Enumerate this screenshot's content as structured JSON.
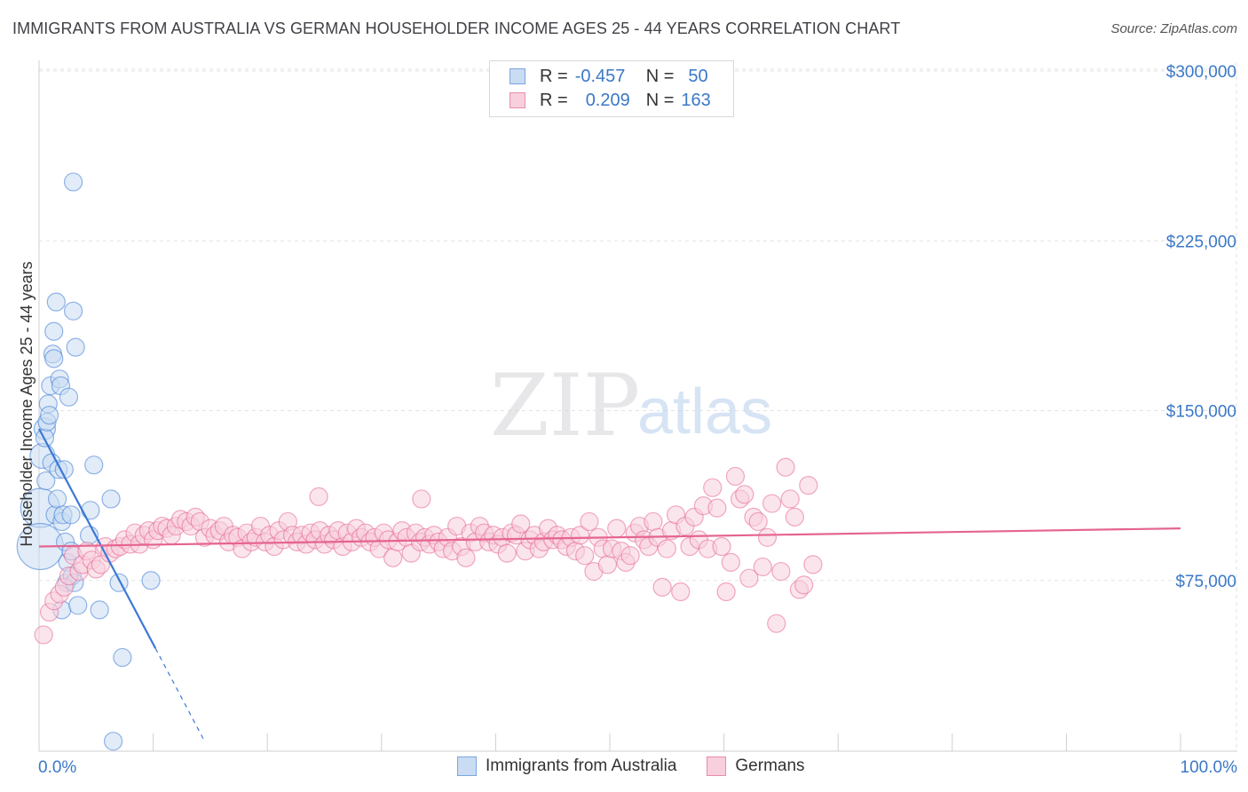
{
  "title": "IMMIGRANTS FROM AUSTRALIA VS GERMAN HOUSEHOLDER INCOME AGES 25 - 44 YEARS CORRELATION CHART",
  "source": "Source: ZipAtlas.com",
  "watermark": {
    "zip": "ZIP",
    "atlas": "atlas"
  },
  "legend": {
    "r_label": "R =",
    "n_label": "N =",
    "rows": [
      {
        "name": "Immigrants from Australia",
        "r": "-0.457",
        "n": "50",
        "color": "#7aa6dd",
        "fill": "#c9dcf3"
      },
      {
        "name": "Germans",
        "r": "0.209",
        "n": "163",
        "color": "#e98cab",
        "fill": "#f8cfdc"
      }
    ]
  },
  "chart_data": {
    "type": "scatter",
    "title": "IMMIGRANTS FROM AUSTRALIA VS GERMAN HOUSEHOLDER INCOME AGES 25 - 44 YEARS CORRELATION CHART",
    "xlabel": "",
    "ylabel": "Householder Income Ages 25 - 44 years",
    "xlim": [
      0,
      100
    ],
    "ylim": [
      0,
      315000
    ],
    "x_tick_labels": [
      "0.0%",
      "100.0%"
    ],
    "y_ticks": [
      {
        "value": 75000,
        "label": "$75,000"
      },
      {
        "value": 150000,
        "label": "$150,000"
      },
      {
        "value": 225000,
        "label": "$225,000"
      },
      {
        "value": 300000,
        "label": "$300,000"
      }
    ],
    "series": [
      {
        "name": "Immigrants from Australia",
        "color": "#3b78d6",
        "fill": "#c9dcf3",
        "trend": {
          "x0": 0.0,
          "y0": 142000,
          "x1": 10.2,
          "y1": 45000,
          "x_dash_end": 14.5,
          "y_dash_end": 4000
        },
        "points": [
          [
            0.1,
            107000,
            22
          ],
          [
            0.1,
            90000,
            26
          ],
          [
            0.3,
            130000,
            14
          ],
          [
            0.5,
            142000,
            12
          ],
          [
            0.5,
            138000,
            10
          ],
          [
            0.6,
            119000,
            10
          ],
          [
            0.7,
            145000,
            10
          ],
          [
            0.8,
            153000,
            10
          ],
          [
            0.9,
            148000,
            10
          ],
          [
            1.0,
            161000,
            10
          ],
          [
            1.1,
            127000,
            10
          ],
          [
            1.2,
            175000,
            10
          ],
          [
            1.3,
            185000,
            10
          ],
          [
            1.3,
            173000,
            10
          ],
          [
            1.4,
            104000,
            10
          ],
          [
            1.5,
            198000,
            10
          ],
          [
            1.6,
            111000,
            10
          ],
          [
            1.7,
            124000,
            10
          ],
          [
            1.8,
            164000,
            10
          ],
          [
            1.9,
            161000,
            10
          ],
          [
            2.0,
            101000,
            10
          ],
          [
            2.0,
            62000,
            10
          ],
          [
            2.1,
            104000,
            10
          ],
          [
            2.2,
            124000,
            10
          ],
          [
            2.3,
            92000,
            10
          ],
          [
            2.4,
            74000,
            10
          ],
          [
            2.5,
            83000,
            10
          ],
          [
            2.6,
            156000,
            10
          ],
          [
            2.8,
            104000,
            10
          ],
          [
            2.8,
            88000,
            10
          ],
          [
            2.9,
            77000,
            10
          ],
          [
            3.0,
            194000,
            10
          ],
          [
            3.0,
            251000,
            10
          ],
          [
            3.1,
            74000,
            10
          ],
          [
            3.2,
            178000,
            10
          ],
          [
            3.4,
            64000,
            10
          ],
          [
            4.4,
            95000,
            10
          ],
          [
            4.5,
            106000,
            10
          ],
          [
            4.8,
            126000,
            10
          ],
          [
            5.3,
            62000,
            10
          ],
          [
            6.3,
            111000,
            10
          ],
          [
            7.0,
            74000,
            10
          ],
          [
            7.3,
            41000,
            10
          ],
          [
            9.8,
            75000,
            10
          ],
          [
            6.5,
            4000,
            10
          ]
        ]
      },
      {
        "name": "Germans",
        "color": "#e5648f",
        "fill": "#f8cfdc",
        "trend": {
          "x0": 0.0,
          "y0": 90000,
          "x1": 100.0,
          "y1": 98000
        },
        "points": [
          [
            0.4,
            51000,
            10
          ],
          [
            0.9,
            61000,
            10
          ],
          [
            1.3,
            66000,
            10
          ],
          [
            1.8,
            69000,
            10
          ],
          [
            2.2,
            72000,
            10
          ],
          [
            2.6,
            77000,
            10
          ],
          [
            3.0,
            86000,
            10
          ],
          [
            3.5,
            79000,
            10
          ],
          [
            3.8,
            82000,
            10
          ],
          [
            4.2,
            88000,
            10
          ],
          [
            4.6,
            84000,
            10
          ],
          [
            5.0,
            80000,
            10
          ],
          [
            5.4,
            82000,
            10
          ],
          [
            5.8,
            90000,
            10
          ],
          [
            6.2,
            87000,
            10
          ],
          [
            6.7,
            89000,
            10
          ],
          [
            7.1,
            90000,
            10
          ],
          [
            7.5,
            93000,
            10
          ],
          [
            8.0,
            91000,
            10
          ],
          [
            8.4,
            96000,
            10
          ],
          [
            8.8,
            91000,
            10
          ],
          [
            9.2,
            95000,
            10
          ],
          [
            9.6,
            97000,
            10
          ],
          [
            10.0,
            93000,
            10
          ],
          [
            10.4,
            97000,
            10
          ],
          [
            10.8,
            99000,
            10
          ],
          [
            11.2,
            98000,
            10
          ],
          [
            11.6,
            95000,
            10
          ],
          [
            12.0,
            99000,
            10
          ],
          [
            12.4,
            102000,
            10
          ],
          [
            12.9,
            101000,
            10
          ],
          [
            13.3,
            99000,
            10
          ],
          [
            13.7,
            103000,
            10
          ],
          [
            14.1,
            101000,
            10
          ],
          [
            14.5,
            94000,
            10
          ],
          [
            15.0,
            98000,
            10
          ],
          [
            15.4,
            95000,
            10
          ],
          [
            15.8,
            97000,
            10
          ],
          [
            16.2,
            99000,
            10
          ],
          [
            16.6,
            92000,
            10
          ],
          [
            17.0,
            95000,
            10
          ],
          [
            17.4,
            94000,
            10
          ],
          [
            17.8,
            89000,
            10
          ],
          [
            18.2,
            96000,
            10
          ],
          [
            18.6,
            92000,
            10
          ],
          [
            19.0,
            94000,
            10
          ],
          [
            19.4,
            99000,
            10
          ],
          [
            19.8,
            92000,
            10
          ],
          [
            20.2,
            95000,
            10
          ],
          [
            20.6,
            90000,
            10
          ],
          [
            21.0,
            97000,
            10
          ],
          [
            21.4,
            93000,
            10
          ],
          [
            21.8,
            101000,
            10
          ],
          [
            22.2,
            95000,
            10
          ],
          [
            22.6,
            92000,
            10
          ],
          [
            23.0,
            95000,
            10
          ],
          [
            23.4,
            91000,
            10
          ],
          [
            23.8,
            96000,
            10
          ],
          [
            24.2,
            93000,
            10
          ],
          [
            24.6,
            97000,
            10
          ],
          [
            25.0,
            91000,
            10
          ],
          [
            25.4,
            95000,
            10
          ],
          [
            25.8,
            93000,
            10
          ],
          [
            26.2,
            97000,
            10
          ],
          [
            26.6,
            90000,
            10
          ],
          [
            27.0,
            96000,
            10
          ],
          [
            27.4,
            92000,
            10
          ],
          [
            27.8,
            98000,
            10
          ],
          [
            28.2,
            94000,
            10
          ],
          [
            28.6,
            96000,
            10
          ],
          [
            29.0,
            92000,
            10
          ],
          [
            29.4,
            94000,
            10
          ],
          [
            29.8,
            89000,
            10
          ],
          [
            30.2,
            96000,
            10
          ],
          [
            30.6,
            93000,
            10
          ],
          [
            31.0,
            85000,
            10
          ],
          [
            31.4,
            92000,
            10
          ],
          [
            31.8,
            97000,
            10
          ],
          [
            32.2,
            94000,
            10
          ],
          [
            32.6,
            87000,
            10
          ],
          [
            33.0,
            96000,
            10
          ],
          [
            33.4,
            92000,
            10
          ],
          [
            33.8,
            94000,
            10
          ],
          [
            34.2,
            91000,
            10
          ],
          [
            34.6,
            95000,
            10
          ],
          [
            35.0,
            92000,
            10
          ],
          [
            35.4,
            89000,
            10
          ],
          [
            35.8,
            94000,
            10
          ],
          [
            36.2,
            88000,
            10
          ],
          [
            36.6,
            99000,
            10
          ],
          [
            37.0,
            90000,
            10
          ],
          [
            37.4,
            85000,
            10
          ],
          [
            37.8,
            96000,
            10
          ],
          [
            38.2,
            92000,
            10
          ],
          [
            38.6,
            99000,
            10
          ],
          [
            39.0,
            96000,
            10
          ],
          [
            39.4,
            92000,
            10
          ],
          [
            39.8,
            95000,
            10
          ],
          [
            40.2,
            91000,
            10
          ],
          [
            40.6,
            94000,
            10
          ],
          [
            41.0,
            87000,
            10
          ],
          [
            41.4,
            96000,
            10
          ],
          [
            41.8,
            95000,
            10
          ],
          [
            42.2,
            100000,
            10
          ],
          [
            42.6,
            88000,
            10
          ],
          [
            43.0,
            93000,
            10
          ],
          [
            43.4,
            95000,
            10
          ],
          [
            43.8,
            89000,
            10
          ],
          [
            44.2,
            92000,
            10
          ],
          [
            44.6,
            98000,
            10
          ],
          [
            45.0,
            93000,
            10
          ],
          [
            45.4,
            95000,
            10
          ],
          [
            45.8,
            93000,
            10
          ],
          [
            46.2,
            90000,
            10
          ],
          [
            46.6,
            94000,
            10
          ],
          [
            47.0,
            88000,
            10
          ],
          [
            47.4,
            95000,
            10
          ],
          [
            47.8,
            86000,
            10
          ],
          [
            48.2,
            101000,
            10
          ],
          [
            48.6,
            79000,
            10
          ],
          [
            49.0,
            94000,
            10
          ],
          [
            49.4,
            89000,
            10
          ],
          [
            49.8,
            82000,
            10
          ],
          [
            50.2,
            89000,
            10
          ],
          [
            50.6,
            98000,
            10
          ],
          [
            51.0,
            88000,
            10
          ],
          [
            51.4,
            83000,
            10
          ],
          [
            51.8,
            86000,
            10
          ],
          [
            52.2,
            96000,
            10
          ],
          [
            52.6,
            99000,
            10
          ],
          [
            53.0,
            93000,
            10
          ],
          [
            53.4,
            90000,
            10
          ],
          [
            53.8,
            101000,
            10
          ],
          [
            54.2,
            94000,
            10
          ],
          [
            54.6,
            72000,
            10
          ],
          [
            55.0,
            89000,
            10
          ],
          [
            55.4,
            97000,
            10
          ],
          [
            55.8,
            104000,
            10
          ],
          [
            56.2,
            70000,
            10
          ],
          [
            56.6,
            99000,
            10
          ],
          [
            57.0,
            90000,
            10
          ],
          [
            57.4,
            103000,
            10
          ],
          [
            57.8,
            93000,
            10
          ],
          [
            58.2,
            108000,
            10
          ],
          [
            58.6,
            89000,
            10
          ],
          [
            59.0,
            116000,
            10
          ],
          [
            59.4,
            107000,
            10
          ],
          [
            59.8,
            90000,
            10
          ],
          [
            60.2,
            70000,
            10
          ],
          [
            60.6,
            83000,
            10
          ],
          [
            61.0,
            121000,
            10
          ],
          [
            61.4,
            111000,
            10
          ],
          [
            61.8,
            113000,
            10
          ],
          [
            62.2,
            76000,
            10
          ],
          [
            62.6,
            103000,
            10
          ],
          [
            63.0,
            101000,
            10
          ],
          [
            63.4,
            81000,
            10
          ],
          [
            63.8,
            94000,
            10
          ],
          [
            64.2,
            109000,
            10
          ],
          [
            64.6,
            56000,
            10
          ],
          [
            65.0,
            79000,
            10
          ],
          [
            65.4,
            125000,
            10
          ],
          [
            65.8,
            111000,
            10
          ],
          [
            66.2,
            103000,
            10
          ],
          [
            66.6,
            71000,
            10
          ],
          [
            67.0,
            73000,
            10
          ],
          [
            67.4,
            117000,
            10
          ],
          [
            67.8,
            82000,
            10
          ],
          [
            24.5,
            112000,
            10
          ],
          [
            33.5,
            111000,
            10
          ]
        ]
      }
    ]
  }
}
